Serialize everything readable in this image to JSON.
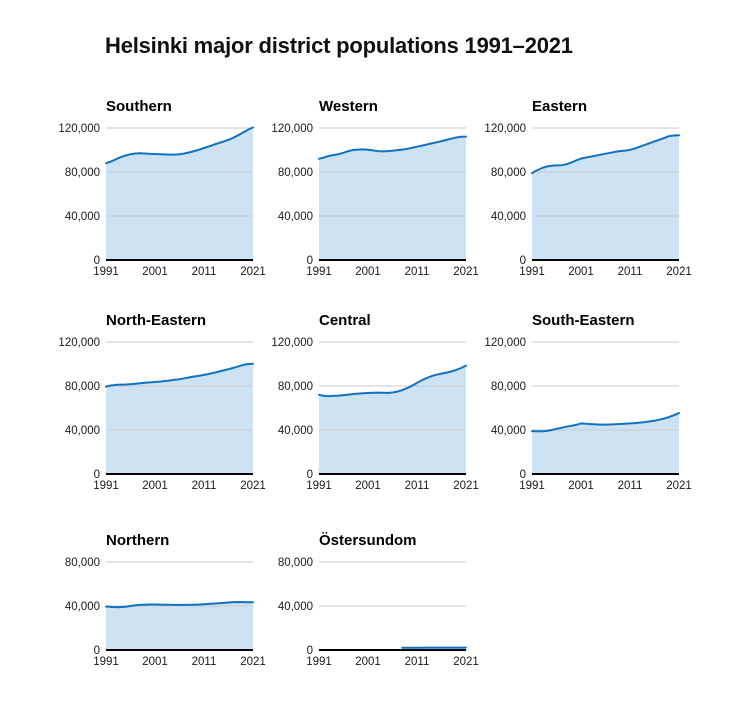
{
  "page": {
    "background": "#ffffff"
  },
  "colors": {
    "line": "#1272c2",
    "area_fill": "#cde2f2",
    "gridline": "#c9c9c9",
    "zero_axis": "#000000",
    "tick_text": "#1a1a1a",
    "title_text": "#111111"
  },
  "chart_data": {
    "type": "area",
    "title": "Helsinki major district populations 1991–2021",
    "x": [
      1991,
      1992,
      1993,
      1994,
      1995,
      1996,
      1997,
      1998,
      1999,
      2000,
      2001,
      2002,
      2003,
      2004,
      2005,
      2006,
      2007,
      2008,
      2009,
      2010,
      2011,
      2012,
      2013,
      2014,
      2015,
      2016,
      2017,
      2018,
      2019,
      2020,
      2021
    ],
    "xticks": [
      1991,
      2001,
      2011,
      2021
    ],
    "xlabel": "",
    "ylabel": "",
    "grid": true,
    "legend": false,
    "series": [
      {
        "name": "Southern",
        "ylim": [
          0,
          120000
        ],
        "yticks": [
          0,
          40000,
          80000,
          120000
        ],
        "values": [
          88000,
          89500,
          91500,
          93500,
          95000,
          96200,
          96800,
          97000,
          96800,
          96500,
          96400,
          96200,
          96000,
          95800,
          95800,
          96200,
          96800,
          97800,
          99000,
          100300,
          101800,
          103300,
          104800,
          106300,
          107800,
          109300,
          111200,
          113500,
          116000,
          118500,
          120500
        ]
      },
      {
        "name": "Western",
        "ylim": [
          0,
          120000
        ],
        "yticks": [
          0,
          40000,
          80000,
          120000
        ],
        "values": [
          92000,
          93200,
          94500,
          95500,
          96300,
          97500,
          99000,
          100000,
          100400,
          100500,
          100300,
          99600,
          99000,
          98700,
          99000,
          99400,
          99900,
          100400,
          101000,
          102000,
          103000,
          104000,
          105000,
          106000,
          107000,
          108100,
          109200,
          110300,
          111400,
          112000,
          112200
        ]
      },
      {
        "name": "Eastern",
        "ylim": [
          0,
          120000
        ],
        "yticks": [
          0,
          40000,
          80000,
          120000
        ],
        "values": [
          79000,
          81500,
          83500,
          85000,
          85700,
          86000,
          86200,
          87000,
          88500,
          90500,
          92200,
          93200,
          94000,
          94800,
          95700,
          96600,
          97500,
          98400,
          99000,
          99500,
          100200,
          101500,
          103000,
          104600,
          106200,
          107800,
          109400,
          111000,
          112600,
          113200,
          113400
        ]
      },
      {
        "name": "North-Eastern",
        "ylim": [
          0,
          120000
        ],
        "yticks": [
          0,
          40000,
          80000,
          120000
        ],
        "values": [
          79500,
          80500,
          81000,
          81300,
          81400,
          81600,
          82000,
          82500,
          83000,
          83300,
          83600,
          84000,
          84500,
          85000,
          85600,
          86200,
          87000,
          87800,
          88600,
          89300,
          90100,
          91000,
          92000,
          93100,
          94200,
          95300,
          96500,
          97800,
          99200,
          100000,
          100200
        ]
      },
      {
        "name": "Central",
        "ylim": [
          0,
          120000
        ],
        "yticks": [
          0,
          40000,
          80000,
          120000
        ],
        "values": [
          72000,
          71000,
          70800,
          71000,
          71300,
          71700,
          72200,
          72700,
          73100,
          73400,
          73600,
          73900,
          74000,
          73800,
          73700,
          74100,
          74900,
          76300,
          78100,
          80300,
          82800,
          85300,
          87300,
          89000,
          90300,
          91300,
          92200,
          93200,
          94600,
          96400,
          98500
        ]
      },
      {
        "name": "South-Eastern",
        "ylim": [
          0,
          120000
        ],
        "yticks": [
          0,
          40000,
          80000,
          120000
        ],
        "values": [
          39000,
          38800,
          38700,
          39200,
          40000,
          41000,
          42000,
          43000,
          43800,
          44600,
          46000,
          45700,
          45400,
          45100,
          44900,
          44900,
          45000,
          45200,
          45500,
          45700,
          46000,
          46300,
          46700,
          47200,
          47800,
          48500,
          49400,
          50500,
          51800,
          53500,
          55500
        ]
      },
      {
        "name": "Northern",
        "ylim": [
          0,
          80000
        ],
        "yticks": [
          0,
          40000,
          80000
        ],
        "values": [
          39500,
          39200,
          39000,
          39000,
          39400,
          40000,
          40600,
          41000,
          41300,
          41400,
          41400,
          41300,
          41200,
          41100,
          41000,
          41000,
          41000,
          41100,
          41200,
          41400,
          41600,
          41900,
          42200,
          42500,
          42800,
          43200,
          43500,
          43600,
          43500,
          43400,
          43400
        ]
      },
      {
        "name": "Östersundom",
        "ylim": [
          0,
          80000
        ],
        "yticks": [
          0,
          40000,
          80000
        ],
        "values": [
          null,
          null,
          null,
          null,
          null,
          null,
          null,
          null,
          null,
          null,
          null,
          null,
          null,
          null,
          null,
          null,
          null,
          2000,
          2050,
          2050,
          2100,
          2100,
          2150,
          2150,
          2150,
          2200,
          2200,
          2200,
          2200,
          2150,
          2150
        ]
      }
    ]
  }
}
